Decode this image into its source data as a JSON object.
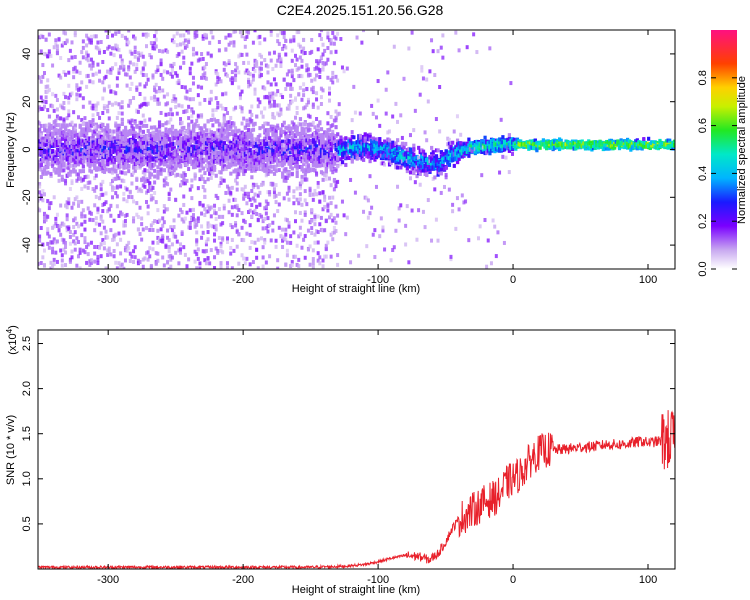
{
  "title": "C2E4.2025.151.20.56.G28",
  "colors": {
    "snr_line": "#e8202a"
  },
  "chart_data": [
    {
      "type": "heatmap",
      "xlabel": "Height of straight line (km)",
      "ylabel": "Frequency (Hz)",
      "xlim": [
        -352,
        120
      ],
      "ylim": [
        -50,
        50
      ],
      "xticks": [
        "-300",
        "-200",
        "-100",
        "0",
        "100"
      ],
      "yticks": [
        "-40",
        "-20",
        "0",
        "20",
        "40"
      ],
      "colorbar": {
        "label": "Normalized spectral amplitude",
        "range": [
          0,
          1
        ],
        "ticks": [
          "0.0",
          "0.2",
          "0.4",
          "0.6",
          "0.8"
        ],
        "colormap": "rainbow (purple-blue-cyan-green-yellow-red-magenta)"
      },
      "center_frequency": [
        [
          -350,
          0
        ],
        [
          -130,
          0
        ],
        [
          -110,
          1
        ],
        [
          -95,
          0
        ],
        [
          -85,
          -2
        ],
        [
          -70,
          -5
        ],
        [
          -55,
          -6
        ],
        [
          -45,
          -2
        ],
        [
          -30,
          1
        ],
        [
          -10,
          2
        ],
        [
          20,
          2
        ],
        [
          60,
          2
        ],
        [
          100,
          2
        ],
        [
          118,
          2
        ]
      ]
    },
    {
      "type": "line",
      "xlabel": "Height of straight line (km)",
      "ylabel": "SNR (10 * v/v)",
      "yexponent": "(x10",
      "yexponent_power": "4",
      "yexponent_close": ")",
      "xlim": [
        -352,
        120
      ],
      "ylim": [
        0,
        2.65
      ],
      "xticks": [
        "-300",
        "-200",
        "-100",
        "0",
        "100"
      ],
      "yticks": [
        "0.5",
        "1.0",
        "1.5",
        "2.0",
        "2.5"
      ],
      "series": [
        {
          "x": [
            -352,
            -300,
            -250,
            -200,
            -150,
            -125,
            -110,
            -100,
            -90,
            -80,
            -70,
            -62,
            -55,
            -50,
            -45,
            -40,
            -35,
            -30,
            -25,
            -20,
            -15,
            -10,
            -5,
            0,
            5,
            10,
            15,
            20,
            25,
            30,
            40,
            50,
            60,
            70,
            80,
            90,
            95,
            100,
            105,
            110,
            115,
            118
          ],
          "y": [
            0.02,
            0.02,
            0.02,
            0.02,
            0.02,
            0.03,
            0.05,
            0.08,
            0.12,
            0.15,
            0.14,
            0.1,
            0.18,
            0.3,
            0.45,
            0.55,
            0.6,
            0.65,
            0.7,
            0.75,
            0.78,
            0.82,
            0.95,
            1.0,
            1.05,
            1.15,
            1.25,
            1.3,
            1.32,
            1.32,
            1.33,
            1.35,
            1.36,
            1.38,
            1.38,
            1.4,
            1.42,
            1.4,
            1.41,
            1.42,
            1.43,
            1.45
          ]
        }
      ]
    }
  ]
}
